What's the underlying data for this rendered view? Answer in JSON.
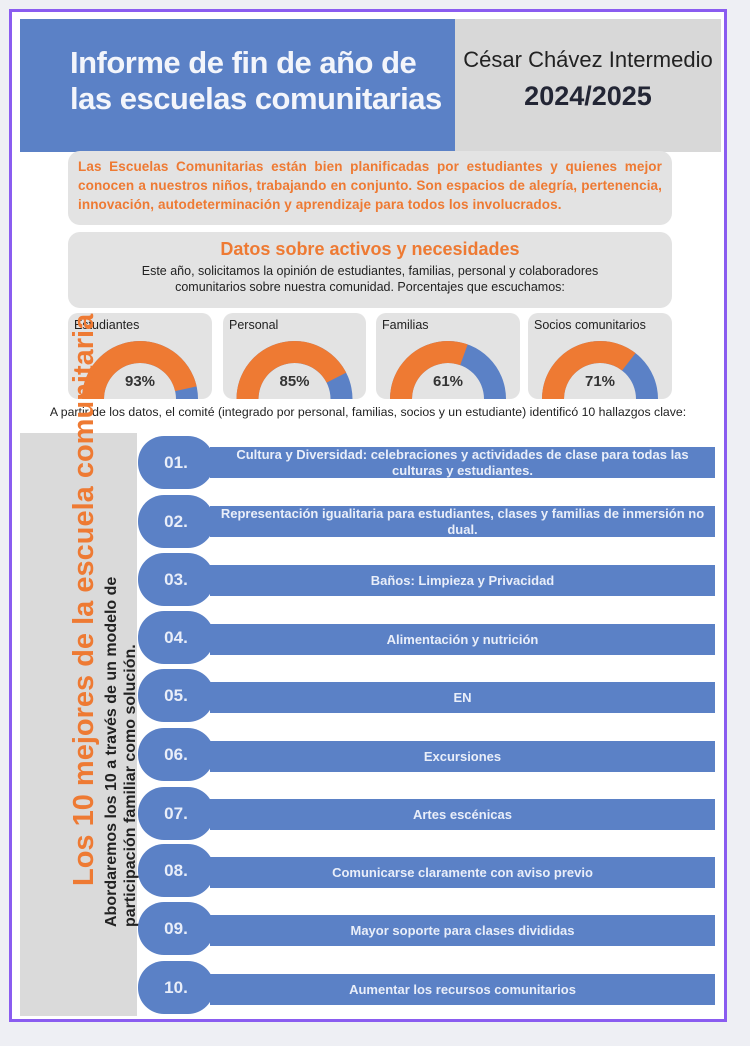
{
  "header": {
    "title": "Informe de fin de año de las escuelas comunitarias",
    "school_name": "César Chávez Intermedio",
    "year": "2024/2025"
  },
  "intro": "Las Escuelas Comunitarias están bien planificadas por estudiantes y quienes mejor conocen a nuestros niños, trabajando en conjunto. Son espacios de alegría, pertenencia, innovación, autodeterminación y aprendizaje para todos los involucrados.",
  "datos": {
    "title": "Datos sobre activos y necesidades",
    "body": "Este año, solicitamos la opinión de estudiantes, familias, personal y colaboradores comunitarios sobre nuestra comunidad. Porcentajes que escuchamos:"
  },
  "chart_data": {
    "type": "gauge",
    "colors": {
      "value": "#ee7a33",
      "remainder": "#5b81c6"
    },
    "categories": [
      "Estudiantes",
      "Personal",
      "Familias",
      "Socios comunitarios"
    ],
    "values": [
      93,
      85,
      61,
      71
    ],
    "labels": [
      "93%",
      "85%",
      "61%",
      "71%"
    ]
  },
  "caption": "A partir de los datos, el comité (integrado por personal, familias, socios y un estudiante) identificó 10 hallazgos clave:",
  "top10": {
    "title": "Los 10 mejores de la escuela comunitaria",
    "subtitle": "Abordaremos los 10 a través de un modelo de participación familiar como solución.",
    "items": [
      {
        "num": "01.",
        "text": "Cultura y Diversidad: celebraciones y actividades de clase para todas las culturas y estudiantes."
      },
      {
        "num": "02.",
        "text": "Representación igualitaria para estudiantes, clases y familias de inmersión no dual."
      },
      {
        "num": "03.",
        "text": "Baños: Limpieza y Privacidad"
      },
      {
        "num": "04.",
        "text": "Alimentación y nutrición"
      },
      {
        "num": "05.",
        "text": "EN"
      },
      {
        "num": "06.",
        "text": "Excursiones"
      },
      {
        "num": "07.",
        "text": "Artes escénicas"
      },
      {
        "num": "08.",
        "text": "Comunicarse claramente con aviso previo"
      },
      {
        "num": "09.",
        "text": "Mayor soporte para clases divididas"
      },
      {
        "num": "10.",
        "text": "Aumentar los recursos comunitarios"
      }
    ]
  }
}
